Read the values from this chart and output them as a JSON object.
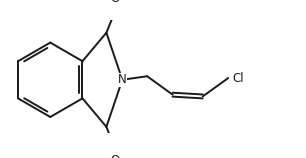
{
  "bg_color": "#ffffff",
  "line_color": "#1a1a1a",
  "line_width": 1.4,
  "font_size_label": 8.5,
  "label_N": "N",
  "label_O_top": "O",
  "label_O_bottom": "O",
  "label_Cl": "Cl",
  "figsize": [
    3.06,
    1.58
  ],
  "dpi": 100
}
